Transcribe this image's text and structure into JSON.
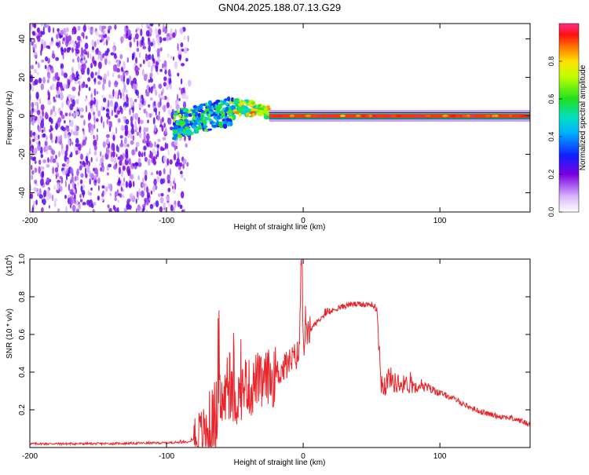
{
  "title": "GN04.2025.188.07.13.G29",
  "colors": {
    "snr_line": "#e8262b",
    "axis": "#000000",
    "background": "#ffffff",
    "spectrum_band": "#d81b3a"
  },
  "chart_data": [
    {
      "type": "heatmap",
      "title": "GN04.2025.188.07.13.G29",
      "xlabel": "Height of straight line (km)",
      "ylabel": "Frequency (Hz)",
      "xlim": [
        -200,
        166
      ],
      "ylim": [
        -50,
        48
      ],
      "x_ticks": [
        "-200",
        "-100",
        "0",
        "100"
      ],
      "y_ticks": [
        "-40",
        "-20",
        "0",
        "20",
        "40"
      ],
      "colorbar": {
        "label": "Normalized spectral amplitude",
        "range": [
          0,
          1
        ],
        "ticks": [
          "0.0",
          "0.2",
          "0.4",
          "0.6",
          "0.8"
        ],
        "colormap": "rainbow (white-violet-blue-cyan-green-yellow-red-magenta)"
      },
      "regions": [
        {
          "x_range": [
            -200,
            -80
          ],
          "frequency_range": [
            -50,
            48
          ],
          "amplitude": "low (0.1-0.3), scattered noise"
        },
        {
          "x_range": [
            -95,
            -50
          ],
          "frequency_range": [
            -15,
            12
          ],
          "amplitude": "0.3-0.7"
        },
        {
          "x_range": [
            -50,
            -25
          ],
          "frequency_range": [
            -5,
            9
          ],
          "amplitude": "0.5-0.9"
        },
        {
          "x_range": [
            -25,
            166
          ],
          "frequency_range": [
            -1.5,
            1.5
          ],
          "amplitude": "0.8-1.0"
        }
      ]
    },
    {
      "type": "line",
      "xlabel": "Height of straight line (km)",
      "ylabel": "SNR (10 * v/v)",
      "scale_label": "(x10",
      "scale_exp": "4",
      "scale_close": ")",
      "xlim": [
        -200,
        166
      ],
      "ylim": [
        0,
        1.0
      ],
      "x_ticks": [
        "-200",
        "-100",
        "0",
        "100"
      ],
      "y_ticks": [
        "0.2",
        "0.4",
        "0.6",
        "0.8",
        "1.0"
      ],
      "series": [
        {
          "x": [
            -200,
            -150,
            -100,
            -85,
            -75,
            -68,
            -62,
            -55,
            -50,
            -46,
            -42,
            -38,
            -34,
            -30,
            -26,
            -22,
            -18,
            -14,
            -10,
            -6,
            -3,
            -1.5,
            0,
            3,
            8,
            15,
            25,
            35,
            45,
            50,
            54,
            57,
            60,
            63,
            66,
            70,
            75,
            80,
            85,
            90,
            100,
            110,
            120,
            130,
            140,
            150,
            160,
            166
          ],
          "y": [
            0.02,
            0.02,
            0.025,
            0.03,
            0.06,
            0.1,
            0.2,
            0.3,
            0.25,
            0.28,
            0.35,
            0.3,
            0.37,
            0.33,
            0.38,
            0.36,
            0.4,
            0.42,
            0.45,
            0.48,
            0.5,
            0.97,
            0.55,
            0.6,
            0.65,
            0.7,
            0.74,
            0.76,
            0.76,
            0.76,
            0.73,
            0.35,
            0.33,
            0.38,
            0.35,
            0.33,
            0.34,
            0.32,
            0.34,
            0.32,
            0.29,
            0.26,
            0.22,
            0.19,
            0.17,
            0.16,
            0.14,
            0.12
          ]
        }
      ]
    }
  ]
}
